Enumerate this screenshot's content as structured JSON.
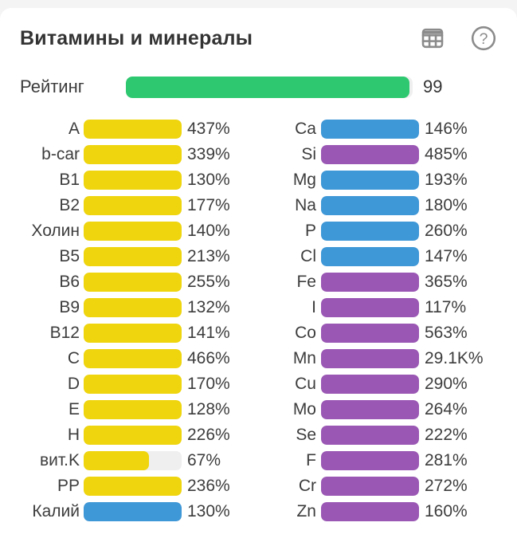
{
  "header": {
    "title": "Витамины и минералы",
    "icons": [
      {
        "name": "table-icon"
      },
      {
        "name": "help-icon",
        "glyph": "?"
      }
    ]
  },
  "rating": {
    "label": "Рейтинг",
    "value_text": "99",
    "percent": 99
  },
  "colors": {
    "yellow": "#efd50d",
    "blue": "#3e97d7",
    "purple": "#9a57b4",
    "green": "#2dc86f",
    "track": "#efefef",
    "icon_gray": "#8b8b8b",
    "title_text": "#333333",
    "body_text": "#3d3d3d",
    "page_bg": "#f4f4f5",
    "card_bg": "#ffffff"
  },
  "chart_data": {
    "type": "bar",
    "orientation": "horizontal",
    "title": "Витамины и минералы",
    "unit": "%",
    "bar_fill_cap_percent": 100,
    "rating": {
      "label": "Рейтинг",
      "value": 99
    },
    "series": [
      {
        "name": "vitamins-column",
        "items": [
          {
            "label": "A",
            "value": 437,
            "text": "437%",
            "color": "yellow",
            "fill": 100
          },
          {
            "label": "b-car",
            "value": 339,
            "text": "339%",
            "color": "yellow",
            "fill": 100
          },
          {
            "label": "B1",
            "value": 130,
            "text": "130%",
            "color": "yellow",
            "fill": 100
          },
          {
            "label": "B2",
            "value": 177,
            "text": "177%",
            "color": "yellow",
            "fill": 100
          },
          {
            "label": "Холин",
            "value": 140,
            "text": "140%",
            "color": "yellow",
            "fill": 100
          },
          {
            "label": "B5",
            "value": 213,
            "text": "213%",
            "color": "yellow",
            "fill": 100
          },
          {
            "label": "B6",
            "value": 255,
            "text": "255%",
            "color": "yellow",
            "fill": 100
          },
          {
            "label": "B9",
            "value": 132,
            "text": "132%",
            "color": "yellow",
            "fill": 100
          },
          {
            "label": "B12",
            "value": 141,
            "text": "141%",
            "color": "yellow",
            "fill": 100
          },
          {
            "label": "C",
            "value": 466,
            "text": "466%",
            "color": "yellow",
            "fill": 100
          },
          {
            "label": "D",
            "value": 170,
            "text": "170%",
            "color": "yellow",
            "fill": 100
          },
          {
            "label": "E",
            "value": 128,
            "text": "128%",
            "color": "yellow",
            "fill": 100
          },
          {
            "label": "H",
            "value": 226,
            "text": "226%",
            "color": "yellow",
            "fill": 100
          },
          {
            "label": "вит.K",
            "value": 67,
            "text": "67%",
            "color": "yellow",
            "fill": 67
          },
          {
            "label": "PP",
            "value": 236,
            "text": "236%",
            "color": "yellow",
            "fill": 100
          },
          {
            "label": "Калий",
            "value": 130,
            "text": "130%",
            "color": "blue",
            "fill": 100
          }
        ]
      },
      {
        "name": "minerals-column",
        "items": [
          {
            "label": "Ca",
            "value": 146,
            "text": "146%",
            "color": "blue",
            "fill": 100
          },
          {
            "label": "Si",
            "value": 485,
            "text": "485%",
            "color": "purple",
            "fill": 100
          },
          {
            "label": "Mg",
            "value": 193,
            "text": "193%",
            "color": "blue",
            "fill": 100
          },
          {
            "label": "Na",
            "value": 180,
            "text": "180%",
            "color": "blue",
            "fill": 100
          },
          {
            "label": "P",
            "value": 260,
            "text": "260%",
            "color": "blue",
            "fill": 100
          },
          {
            "label": "Cl",
            "value": 147,
            "text": "147%",
            "color": "blue",
            "fill": 100
          },
          {
            "label": "Fe",
            "value": 365,
            "text": "365%",
            "color": "purple",
            "fill": 100
          },
          {
            "label": "I",
            "value": 117,
            "text": "117%",
            "color": "purple",
            "fill": 100
          },
          {
            "label": "Co",
            "value": 563,
            "text": "563%",
            "color": "purple",
            "fill": 100
          },
          {
            "label": "Mn",
            "value": 29100,
            "text": "29.1K%",
            "color": "purple",
            "fill": 100
          },
          {
            "label": "Cu",
            "value": 290,
            "text": "290%",
            "color": "purple",
            "fill": 100
          },
          {
            "label": "Mo",
            "value": 264,
            "text": "264%",
            "color": "purple",
            "fill": 100
          },
          {
            "label": "Se",
            "value": 222,
            "text": "222%",
            "color": "purple",
            "fill": 100
          },
          {
            "label": "F",
            "value": 281,
            "text": "281%",
            "color": "purple",
            "fill": 100
          },
          {
            "label": "Cr",
            "value": 272,
            "text": "272%",
            "color": "purple",
            "fill": 100
          },
          {
            "label": "Zn",
            "value": 160,
            "text": "160%",
            "color": "purple",
            "fill": 100
          }
        ]
      }
    ]
  }
}
